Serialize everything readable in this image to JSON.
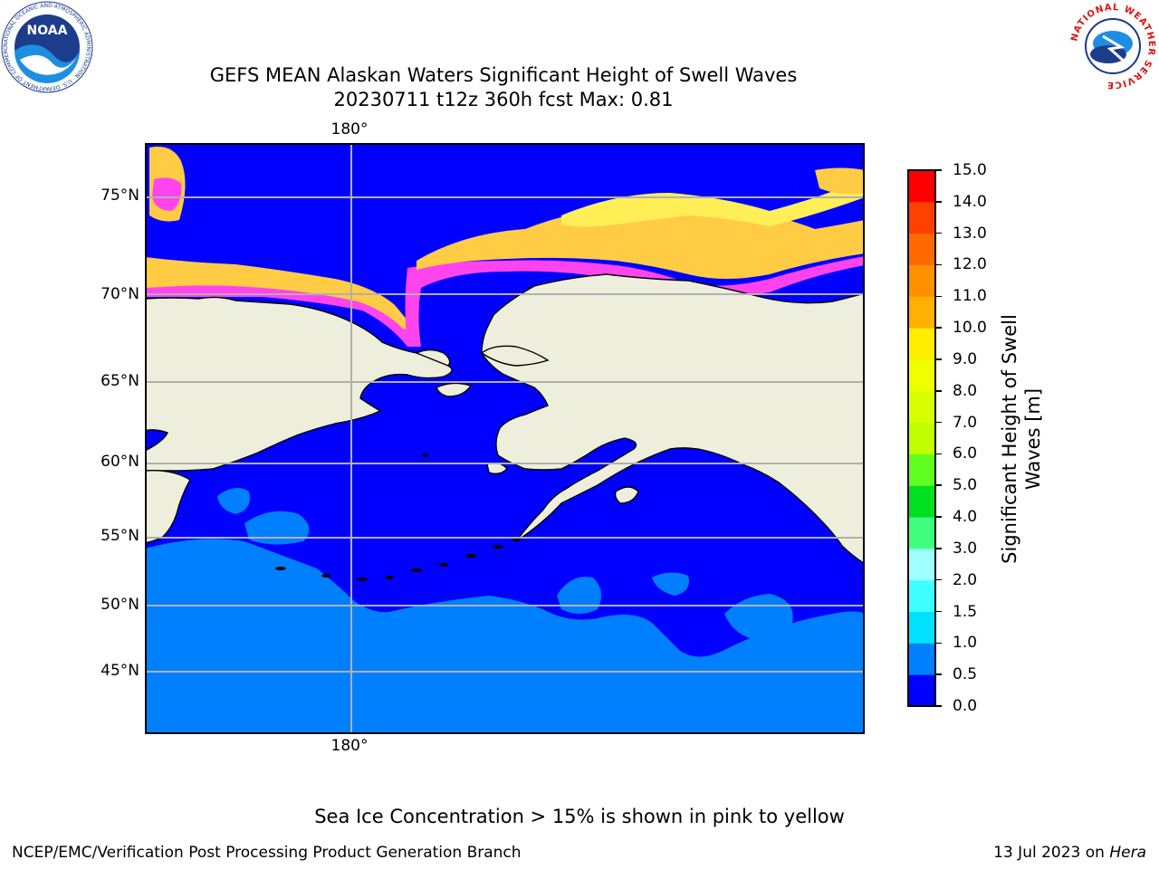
{
  "title": {
    "line1": "GEFS MEAN Alaskan Waters Significant Height of Swell Waves",
    "line2": "20230711 t12z 360h fcst   Max: 0.81"
  },
  "map": {
    "lon_label_top": "180°",
    "lon_label_bottom": "180°",
    "lat_labels": [
      "75°N",
      "70°N",
      "65°N",
      "60°N",
      "55°N",
      "50°N",
      "45°N"
    ],
    "colors": {
      "land": "#eeeedd",
      "ocean_low": "#0000ff",
      "ocean_mid": "#0080ff",
      "ice_pink": "#ff44ee",
      "ice_orange": "#ffcc44",
      "ice_yellow": "#ffee55",
      "gridline": "#b0b0b0"
    }
  },
  "colorbar": {
    "label": "Significant Height of Swell Waves [m]",
    "label_line1": "Significant Height of Swell",
    "label_line2": "Waves [m]",
    "ticks": [
      "0.0",
      "0.5",
      "1.0",
      "1.5",
      "2.0",
      "3.0",
      "4.0",
      "5.0",
      "6.0",
      "7.0",
      "8.0",
      "9.0",
      "10.0",
      "11.0",
      "12.0",
      "13.0",
      "14.0",
      "15.0"
    ],
    "bins": [
      {
        "from": 0.0,
        "to": 0.5,
        "color": "#0000ff"
      },
      {
        "from": 0.5,
        "to": 1.0,
        "color": "#0080ff"
      },
      {
        "from": 1.0,
        "to": 1.5,
        "color": "#00e0ff"
      },
      {
        "from": 1.5,
        "to": 2.0,
        "color": "#40ffff"
      },
      {
        "from": 2.0,
        "to": 3.0,
        "color": "#a0ffff"
      },
      {
        "from": 3.0,
        "to": 4.0,
        "color": "#40ff80"
      },
      {
        "from": 4.0,
        "to": 5.0,
        "color": "#00e020"
      },
      {
        "from": 5.0,
        "to": 6.0,
        "color": "#60ff20"
      },
      {
        "from": 6.0,
        "to": 7.0,
        "color": "#c0ff00"
      },
      {
        "from": 7.0,
        "to": 8.0,
        "color": "#d8ff00"
      },
      {
        "from": 8.0,
        "to": 9.0,
        "color": "#f0ff00"
      },
      {
        "from": 9.0,
        "to": 10.0,
        "color": "#ffee00"
      },
      {
        "from": 10.0,
        "to": 11.0,
        "color": "#ffb000"
      },
      {
        "from": 11.0,
        "to": 12.0,
        "color": "#ff9000"
      },
      {
        "from": 12.0,
        "to": 13.0,
        "color": "#ff6a00"
      },
      {
        "from": 13.0,
        "to": 14.0,
        "color": "#ff4000"
      },
      {
        "from": 14.0,
        "to": 15.0,
        "color": "#ff0000"
      }
    ]
  },
  "footer": {
    "ice_note": "Sea Ice Concentration > 15% is shown in pink to yellow",
    "left": "NCEP/EMC/Verification Post Processing Product Generation Branch",
    "right_date": "13 Jul 2023 on ",
    "right_host": "Hera"
  },
  "logos": {
    "noaa_text": "NOAA",
    "noaa_ring": "NATIONAL OCEANIC AND ATMOSPHERIC ADMINISTRATION · U.S. DEPARTMENT OF COMMERCE ·",
    "nws_ring": "NATIONAL WEATHER SERVICE"
  }
}
